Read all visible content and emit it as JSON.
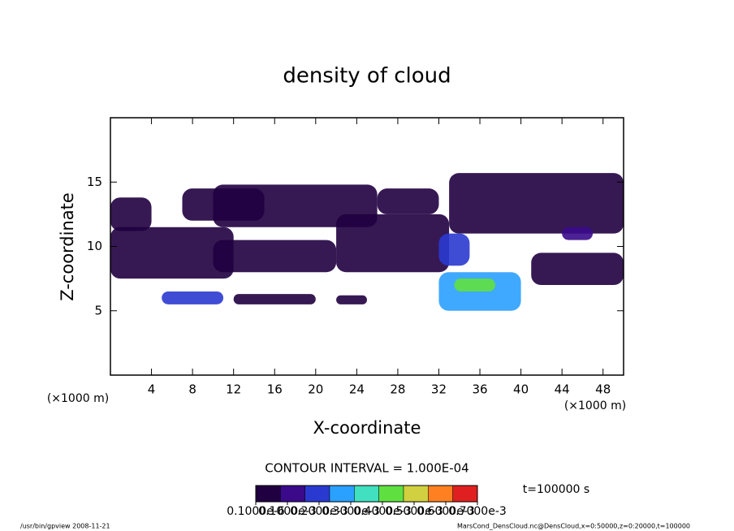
{
  "chart_data": {
    "type": "contour",
    "title": "density of cloud",
    "x_label": "X-coordinate",
    "y_label": "Z-coordinate",
    "x_unit": "(×1000 m)",
    "y_unit": "(×1000 m)",
    "xlim": [
      0,
      50
    ],
    "xticks": [
      4,
      8,
      12,
      16,
      20,
      24,
      28,
      32,
      36,
      40,
      44,
      48
    ],
    "ylim": [
      0,
      20
    ],
    "yticks": [
      5,
      10,
      15
    ],
    "regions": [
      {
        "x": [
          0,
          4
        ],
        "z": [
          11.2,
          13.8
        ],
        "value": 3e-05
      },
      {
        "x": [
          7,
          15
        ],
        "z": [
          12,
          14.5
        ],
        "value": 3e-05
      },
      {
        "x": [
          10,
          26
        ],
        "z": [
          11.5,
          14.8
        ],
        "value": 3e-05
      },
      {
        "x": [
          26,
          32
        ],
        "z": [
          12.5,
          14.5
        ],
        "value": 3e-05
      },
      {
        "x": [
          33,
          50
        ],
        "z": [
          11,
          15.7
        ],
        "value": 3e-05
      },
      {
        "x": [
          0,
          12
        ],
        "z": [
          7.5,
          11.5
        ],
        "value": 3e-05
      },
      {
        "x": [
          10,
          22
        ],
        "z": [
          8,
          10.5
        ],
        "value": 3e-05
      },
      {
        "x": [
          22,
          33
        ],
        "z": [
          8,
          12.5
        ],
        "value": 3e-05
      },
      {
        "x": [
          32,
          35
        ],
        "z": [
          8.5,
          11
        ],
        "value": 0.0002
      },
      {
        "x": [
          41,
          50
        ],
        "z": [
          7,
          9.5
        ],
        "value": 5e-05
      },
      {
        "x": [
          44,
          47
        ],
        "z": [
          10.5,
          11.5
        ],
        "value": 0.00015
      },
      {
        "x": [
          5,
          11
        ],
        "z": [
          5.5,
          6.5
        ],
        "value": 0.0002
      },
      {
        "x": [
          12,
          20
        ],
        "z": [
          5.5,
          6.3
        ],
        "value": 3e-05
      },
      {
        "x": [
          22,
          25
        ],
        "z": [
          5.5,
          6.2
        ],
        "value": 3e-05
      },
      {
        "x": [
          32,
          40
        ],
        "z": [
          5,
          8
        ],
        "value": 0.00025
      },
      {
        "x": [
          33.5,
          37.5
        ],
        "z": [
          6.5,
          7.5
        ],
        "value": 0.00045
      }
    ],
    "contour_interval": "CONTOUR INTERVAL = 1.000E-04",
    "time_label": "t=100000 s",
    "colorbar": {
      "colors": [
        "#200040",
        "#3a0a8a",
        "#2a3ad0",
        "#2aa0ff",
        "#40e0c0",
        "#60e040",
        "#d0d040",
        "#ff8020",
        "#e02020"
      ],
      "ticks": [
        {
          "value": 1e-07,
          "label": "0.1000e-6"
        },
        {
          "value": 0.0001,
          "label": "0.1000e-3"
        },
        {
          "value": 0.0002,
          "label": "0.2000e-3"
        },
        {
          "value": 0.0003,
          "label": "0.3000e-3"
        },
        {
          "value": 0.0004,
          "label": "0.4000e-3"
        },
        {
          "value": 0.0005,
          "label": "0.5000e-3"
        },
        {
          "value": 0.0006,
          "label": "0.6000e-3"
        },
        {
          "value": 0.0007,
          "label": "0.7000e-3"
        }
      ]
    },
    "footer_left": "/usr/bin/gpview  2008-11-21",
    "footer_right": "MarsCond_DensCloud.nc@DensCloud,x=0:50000,z=0:20000,t=100000"
  }
}
